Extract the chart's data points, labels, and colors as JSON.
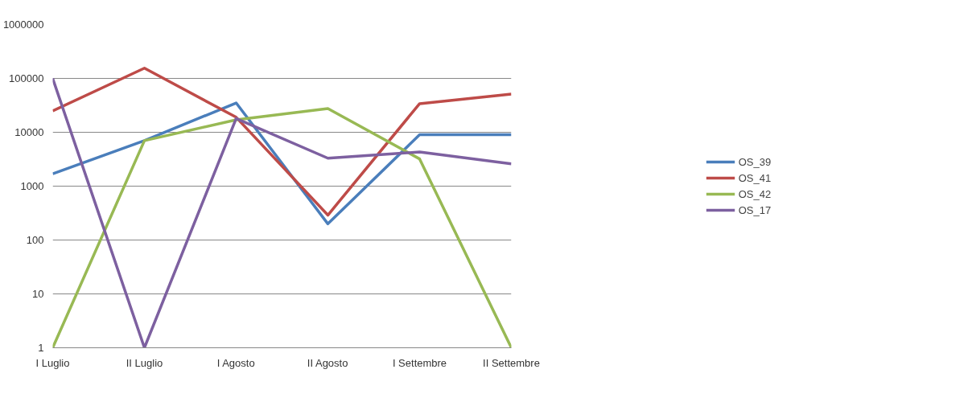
{
  "chart_data": {
    "type": "line",
    "categories": [
      "I Luglio",
      "II Luglio",
      "I Agosto",
      "II Agosto",
      "I Settembre",
      "II Settembre"
    ],
    "series": [
      {
        "name": "OS_39",
        "color": "#4a7ebb",
        "values": [
          1700,
          7000,
          35000,
          200,
          9000,
          9000
        ]
      },
      {
        "name": "OS_41",
        "color": "#be4b48",
        "values": [
          25000,
          155000,
          19000,
          290,
          34000,
          51000
        ]
      },
      {
        "name": "OS_42",
        "color": "#98b954",
        "values": [
          1,
          7000,
          17000,
          27500,
          3200,
          1
        ]
      },
      {
        "name": "OS_17",
        "color": "#7d60a0",
        "values": [
          100000,
          1,
          18000,
          3300,
          4300,
          2600
        ]
      }
    ],
    "log": "y",
    "ylim": [
      1,
      1000000
    ],
    "yticks": [
      1,
      10,
      100,
      1000,
      10000,
      100000,
      1000000
    ],
    "grid": "y",
    "legend": "right",
    "marker": "none",
    "line_style": "solid"
  }
}
